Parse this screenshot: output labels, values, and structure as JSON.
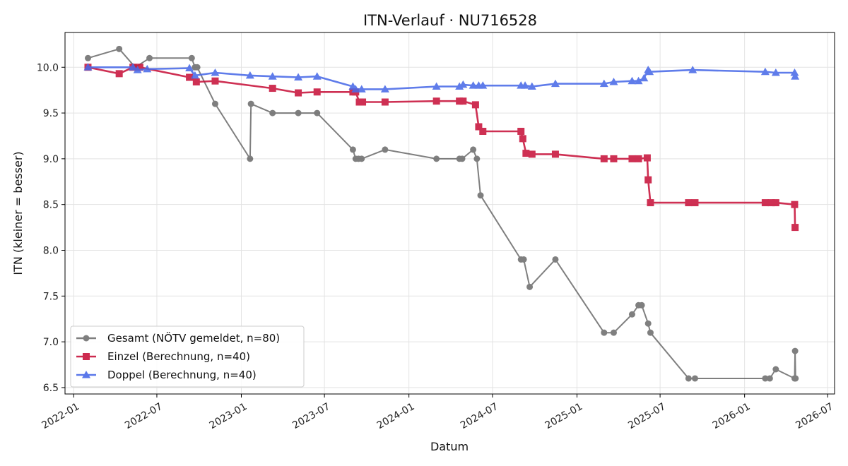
{
  "chart_data": {
    "type": "line",
    "title": "ITN-Verlauf · NU716528",
    "xlabel": "Datum",
    "ylabel": "ITN  (kleiner = besser)",
    "x_axis": "date",
    "xlim": [
      "2021-12-13",
      "2026-07-16"
    ],
    "ylim": [
      6.43,
      10.38
    ],
    "x_ticks": [
      "2022-01",
      "2022-07",
      "2023-01",
      "2023-07",
      "2024-01",
      "2024-07",
      "2025-01",
      "2025-07",
      "2026-01",
      "2026-07"
    ],
    "y_ticks": [
      6.5,
      7.0,
      7.5,
      8.0,
      8.5,
      9.0,
      9.5,
      10.0
    ],
    "grid": true,
    "legend_position": "lower-left",
    "series": [
      {
        "name": "Gesamt (NÖTV gemeldet, n=80)",
        "color": "#555555",
        "marker": "circle",
        "points": [
          [
            "2022-02-01",
            10.1
          ],
          [
            "2022-04-10",
            10.2
          ],
          [
            "2022-05-15",
            10.0
          ],
          [
            "2022-06-15",
            10.1
          ],
          [
            "2022-09-15",
            10.1
          ],
          [
            "2022-09-22",
            10.0
          ],
          [
            "2022-09-27",
            10.0
          ],
          [
            "2022-11-05",
            9.6
          ],
          [
            "2023-01-20",
            9.0
          ],
          [
            "2023-01-22",
            9.6
          ],
          [
            "2023-03-10",
            9.5
          ],
          [
            "2023-05-05",
            9.5
          ],
          [
            "2023-06-15",
            9.5
          ],
          [
            "2023-09-01",
            9.1
          ],
          [
            "2023-09-07",
            9.0
          ],
          [
            "2023-09-13",
            9.0
          ],
          [
            "2023-09-20",
            9.0
          ],
          [
            "2023-11-10",
            9.1
          ],
          [
            "2024-03-01",
            9.0
          ],
          [
            "2024-04-20",
            9.0
          ],
          [
            "2024-04-26",
            9.0
          ],
          [
            "2024-05-20",
            9.1
          ],
          [
            "2024-05-28",
            9.0
          ],
          [
            "2024-06-05",
            8.6
          ],
          [
            "2024-09-01",
            7.9
          ],
          [
            "2024-09-07",
            7.9
          ],
          [
            "2024-09-20",
            7.6
          ],
          [
            "2024-11-15",
            7.9
          ],
          [
            "2025-03-01",
            7.1
          ],
          [
            "2025-03-22",
            7.1
          ],
          [
            "2025-05-01",
            7.3
          ],
          [
            "2025-05-15",
            7.4
          ],
          [
            "2025-05-22",
            7.4
          ],
          [
            "2025-06-05",
            7.2
          ],
          [
            "2025-06-10",
            7.1
          ],
          [
            "2025-09-01",
            6.6
          ],
          [
            "2025-09-15",
            6.6
          ],
          [
            "2026-02-15",
            6.6
          ],
          [
            "2026-02-25",
            6.6
          ],
          [
            "2026-03-10",
            6.7
          ],
          [
            "2026-04-20",
            6.6
          ],
          [
            "2026-04-21",
            6.9
          ],
          [
            "2026-04-22",
            6.6
          ]
        ]
      },
      {
        "name": "Einzel (Berechnung, n=40)",
        "color": "#c8143c",
        "marker": "square",
        "points": [
          [
            "2022-02-01",
            10.0
          ],
          [
            "2022-04-10",
            9.93
          ],
          [
            "2022-05-10",
            10.0
          ],
          [
            "2022-05-25",
            10.0
          ],
          [
            "2022-09-10",
            9.89
          ],
          [
            "2022-09-25",
            9.84
          ],
          [
            "2022-11-05",
            9.85
          ],
          [
            "2023-03-10",
            9.77
          ],
          [
            "2023-05-05",
            9.72
          ],
          [
            "2023-06-15",
            9.73
          ],
          [
            "2023-09-01",
            9.73
          ],
          [
            "2023-09-07",
            9.73
          ],
          [
            "2023-09-15",
            9.62
          ],
          [
            "2023-09-22",
            9.62
          ],
          [
            "2023-11-10",
            9.62
          ],
          [
            "2024-03-01",
            9.63
          ],
          [
            "2024-04-20",
            9.63
          ],
          [
            "2024-04-28",
            9.63
          ],
          [
            "2024-05-25",
            9.59
          ],
          [
            "2024-06-01",
            9.35
          ],
          [
            "2024-06-10",
            9.3
          ],
          [
            "2024-09-01",
            9.3
          ],
          [
            "2024-09-05",
            9.22
          ],
          [
            "2024-09-12",
            9.06
          ],
          [
            "2024-09-25",
            9.05
          ],
          [
            "2024-11-15",
            9.05
          ],
          [
            "2025-03-01",
            9.0
          ],
          [
            "2025-03-22",
            9.0
          ],
          [
            "2025-05-01",
            9.0
          ],
          [
            "2025-05-15",
            9.0
          ],
          [
            "2025-06-03",
            9.01
          ],
          [
            "2025-06-05",
            8.77
          ],
          [
            "2025-06-10",
            8.52
          ],
          [
            "2025-09-01",
            8.52
          ],
          [
            "2025-09-15",
            8.52
          ],
          [
            "2026-02-15",
            8.52
          ],
          [
            "2026-02-28",
            8.52
          ],
          [
            "2026-03-10",
            8.52
          ],
          [
            "2026-04-20",
            8.5
          ],
          [
            "2026-04-21",
            8.25
          ]
        ]
      },
      {
        "name": "Doppel (Berechnung, n=40)",
        "color": "#4a6ae8",
        "marker": "triangle",
        "points": [
          [
            "2022-02-01",
            10.0
          ],
          [
            "2022-05-10",
            10.0
          ],
          [
            "2022-05-20",
            9.97
          ],
          [
            "2022-06-10",
            9.98
          ],
          [
            "2022-09-10",
            9.99
          ],
          [
            "2022-09-22",
            9.91
          ],
          [
            "2022-11-05",
            9.94
          ],
          [
            "2023-01-20",
            9.91
          ],
          [
            "2023-03-10",
            9.9
          ],
          [
            "2023-05-05",
            9.89
          ],
          [
            "2023-06-15",
            9.9
          ],
          [
            "2023-09-01",
            9.79
          ],
          [
            "2023-09-07",
            9.76
          ],
          [
            "2023-09-20",
            9.76
          ],
          [
            "2023-11-10",
            9.76
          ],
          [
            "2024-03-01",
            9.79
          ],
          [
            "2024-04-20",
            9.79
          ],
          [
            "2024-04-28",
            9.81
          ],
          [
            "2024-05-20",
            9.8
          ],
          [
            "2024-06-01",
            9.8
          ],
          [
            "2024-06-10",
            9.8
          ],
          [
            "2024-09-01",
            9.8
          ],
          [
            "2024-09-10",
            9.8
          ],
          [
            "2024-09-25",
            9.79
          ],
          [
            "2024-11-15",
            9.82
          ],
          [
            "2025-03-01",
            9.82
          ],
          [
            "2025-03-22",
            9.84
          ],
          [
            "2025-05-01",
            9.85
          ],
          [
            "2025-05-15",
            9.85
          ],
          [
            "2025-05-27",
            9.88
          ],
          [
            "2025-06-05",
            9.97
          ],
          [
            "2025-06-08",
            9.95
          ],
          [
            "2025-09-10",
            9.97
          ],
          [
            "2026-02-15",
            9.95
          ],
          [
            "2026-03-10",
            9.94
          ],
          [
            "2026-04-20",
            9.94
          ],
          [
            "2026-04-21",
            9.9
          ]
        ]
      }
    ]
  }
}
